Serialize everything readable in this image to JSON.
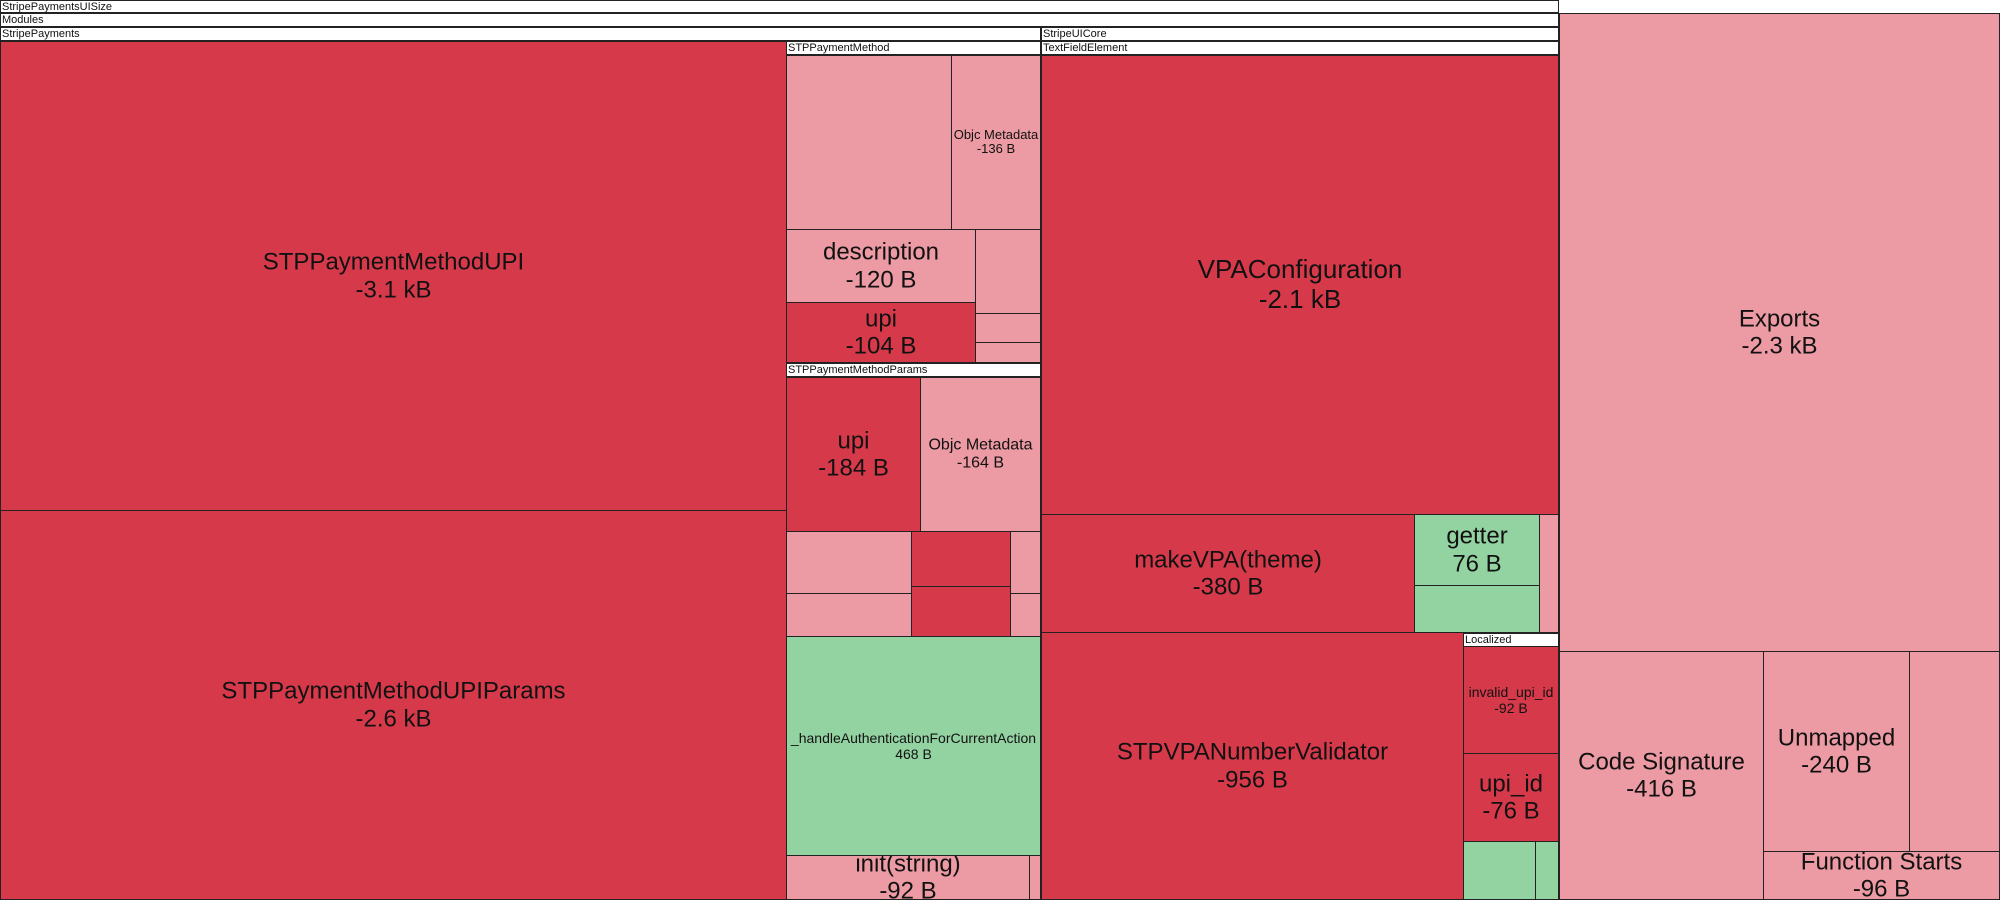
{
  "chart_data": {
    "type": "treemap",
    "colors": {
      "decrease_large": "#d63a4a",
      "decrease_small": "#ec9aa3",
      "increase": "#93d3a2",
      "header": "#ffffff",
      "border": "#222222"
    },
    "headers": [
      "StripePaymentsUISize",
      "Modules",
      "StripePayments",
      "STPPaymentMethod",
      "STPPaymentMethodParams",
      "StripeUICore",
      "TextFieldElement",
      "Localized"
    ],
    "nodes": [
      {
        "name": "STPPaymentMethodUPI",
        "value": "-3.1 kB",
        "color": "#d63a4a"
      },
      {
        "name": "STPPaymentMethodUPIParams",
        "value": "-2.6 kB",
        "color": "#d63a4a"
      },
      {
        "name": "",
        "value": "",
        "color": "#ec9aa3"
      },
      {
        "name": "Objc Metadata",
        "value": "-136 B",
        "color": "#ec9aa3"
      },
      {
        "name": "description",
        "value": "-120 B",
        "color": "#ec9aa3"
      },
      {
        "name": "",
        "value": "",
        "color": "#ec9aa3"
      },
      {
        "name": "upi",
        "value": "-104 B",
        "color": "#d63a4a"
      },
      {
        "name": "",
        "value": "",
        "color": "#ec9aa3"
      },
      {
        "name": "",
        "value": "",
        "color": "#ec9aa3"
      },
      {
        "name": "upi",
        "value": "-184 B",
        "color": "#d63a4a"
      },
      {
        "name": "Objc Metadata",
        "value": "-164 B",
        "color": "#ec9aa3"
      },
      {
        "name": "",
        "value": "",
        "color": "#ec9aa3"
      },
      {
        "name": "",
        "value": "",
        "color": "#d63a4a"
      },
      {
        "name": "",
        "value": "",
        "color": "#ec9aa3"
      },
      {
        "name": "",
        "value": "",
        "color": "#ec9aa3"
      },
      {
        "name": "",
        "value": "",
        "color": "#d63a4a"
      },
      {
        "name": "",
        "value": "",
        "color": "#ec9aa3"
      },
      {
        "name": "_handleAuthenticationForCurrentAction",
        "value": "468 B",
        "color": "#93d3a2"
      },
      {
        "name": "init(string)",
        "value": "-92 B",
        "color": "#ec9aa3"
      },
      {
        "name": "",
        "value": "",
        "color": "#ec9aa3"
      },
      {
        "name": "VPAConfiguration",
        "value": "-2.1 kB",
        "color": "#d63a4a"
      },
      {
        "name": "makeVPA(theme)",
        "value": "-380 B",
        "color": "#d63a4a"
      },
      {
        "name": "getter",
        "value": "76 B",
        "color": "#93d3a2"
      },
      {
        "name": "",
        "value": "",
        "color": "#93d3a2"
      },
      {
        "name": "",
        "value": "",
        "color": "#ec9aa3"
      },
      {
        "name": "STPVPANumberValidator",
        "value": "-956 B",
        "color": "#d63a4a"
      },
      {
        "name": "invalid_upi_id",
        "value": "-92 B",
        "color": "#d63a4a"
      },
      {
        "name": "upi_id",
        "value": "-76 B",
        "color": "#d63a4a"
      },
      {
        "name": "",
        "value": "",
        "color": "#93d3a2"
      },
      {
        "name": "",
        "value": "",
        "color": "#93d3a2"
      },
      {
        "name": "Exports",
        "value": "-2.3 kB",
        "color": "#ec9aa3"
      },
      {
        "name": "Code Signature",
        "value": "-416 B",
        "color": "#ec9aa3"
      },
      {
        "name": "Unmapped",
        "value": "-240 B",
        "color": "#ec9aa3"
      },
      {
        "name": "",
        "value": "",
        "color": "#ec9aa3"
      },
      {
        "name": "Function Starts",
        "value": "-96 B",
        "color": "#ec9aa3"
      }
    ]
  }
}
